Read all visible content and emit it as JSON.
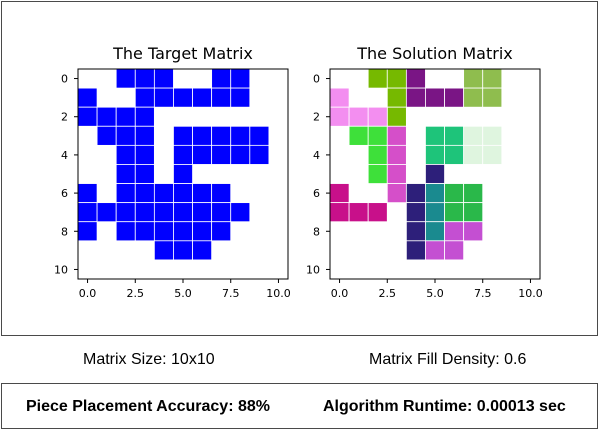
{
  "stats": {
    "matrix_size": "Matrix Size: 10x10",
    "fill_density": "Matrix Fill Density: 0.6"
  },
  "results": {
    "accuracy": "Piece Placement Accuracy: 88%",
    "runtime": "Algorithm Runtime: 0.00013 sec"
  },
  "chart_data": [
    {
      "type": "heatmap",
      "title": "The Target Matrix",
      "xlim": [
        -0.5,
        10.5
      ],
      "ylim": [
        10.5,
        -0.5
      ],
      "xticks": [
        0.0,
        2.5,
        5.0,
        7.5,
        10.0
      ],
      "xtick_labels": [
        "0.0",
        "2.5",
        "5.0",
        "7.5",
        "10.0"
      ],
      "yticks": [
        0,
        2,
        4,
        6,
        8,
        10
      ],
      "ytick_labels": [
        "0",
        "2",
        "4",
        "6",
        "8",
        "10"
      ],
      "grid": false,
      "color": "#0000ff",
      "cells": [
        [
          0,
          2
        ],
        [
          0,
          3
        ],
        [
          0,
          4
        ],
        [
          0,
          7
        ],
        [
          0,
          8
        ],
        [
          1,
          0
        ],
        [
          1,
          3
        ],
        [
          1,
          4
        ],
        [
          1,
          5
        ],
        [
          1,
          6
        ],
        [
          1,
          7
        ],
        [
          1,
          8
        ],
        [
          2,
          0
        ],
        [
          2,
          1
        ],
        [
          2,
          2
        ],
        [
          2,
          3
        ],
        [
          3,
          1
        ],
        [
          3,
          2
        ],
        [
          3,
          3
        ],
        [
          3,
          5
        ],
        [
          3,
          6
        ],
        [
          3,
          7
        ],
        [
          3,
          8
        ],
        [
          3,
          9
        ],
        [
          4,
          2
        ],
        [
          4,
          3
        ],
        [
          4,
          5
        ],
        [
          4,
          6
        ],
        [
          4,
          7
        ],
        [
          4,
          8
        ],
        [
          4,
          9
        ],
        [
          5,
          2
        ],
        [
          5,
          3
        ],
        [
          5,
          5
        ],
        [
          6,
          0
        ],
        [
          6,
          2
        ],
        [
          6,
          3
        ],
        [
          6,
          4
        ],
        [
          6,
          5
        ],
        [
          6,
          6
        ],
        [
          6,
          7
        ],
        [
          7,
          0
        ],
        [
          7,
          1
        ],
        [
          7,
          2
        ],
        [
          7,
          3
        ],
        [
          7,
          4
        ],
        [
          7,
          5
        ],
        [
          7,
          6
        ],
        [
          7,
          7
        ],
        [
          7,
          8
        ],
        [
          8,
          0
        ],
        [
          8,
          2
        ],
        [
          8,
          3
        ],
        [
          8,
          4
        ],
        [
          8,
          5
        ],
        [
          8,
          6
        ],
        [
          8,
          7
        ],
        [
          9,
          4
        ],
        [
          9,
          5
        ],
        [
          9,
          6
        ]
      ]
    },
    {
      "type": "heatmap",
      "title": "The Solution Matrix",
      "xlim": [
        -0.5,
        10.5
      ],
      "ylim": [
        10.5,
        -0.5
      ],
      "xticks": [
        0.0,
        2.5,
        5.0,
        7.5,
        10.0
      ],
      "xtick_labels": [
        "0.0",
        "2.5",
        "5.0",
        "7.5",
        "10.0"
      ],
      "yticks": [
        0,
        2,
        4,
        6,
        8,
        10
      ],
      "ytick_labels": [
        "0",
        "2",
        "4",
        "6",
        "8",
        "10"
      ],
      "grid": false,
      "pieces": [
        {
          "color": "#76b900",
          "cells": [
            [
              0,
              2
            ],
            [
              0,
              3
            ],
            [
              1,
              3
            ],
            [
              2,
              3
            ]
          ]
        },
        {
          "color": "#7a1585",
          "cells": [
            [
              0,
              4
            ],
            [
              1,
              4
            ],
            [
              1,
              5
            ],
            [
              1,
              6
            ]
          ]
        },
        {
          "color": "#8fbd4e",
          "cells": [
            [
              0,
              7
            ],
            [
              0,
              8
            ],
            [
              1,
              7
            ],
            [
              1,
              8
            ]
          ]
        },
        {
          "color": "#f38ef0",
          "cells": [
            [
              1,
              0
            ],
            [
              2,
              0
            ],
            [
              2,
              1
            ],
            [
              2,
              2
            ]
          ]
        },
        {
          "color": "#3ee03a",
          "cells": [
            [
              3,
              1
            ],
            [
              3,
              2
            ],
            [
              4,
              2
            ],
            [
              5,
              2
            ]
          ]
        },
        {
          "color": "#d54fc9",
          "cells": [
            [
              3,
              3
            ],
            [
              4,
              3
            ],
            [
              5,
              3
            ],
            [
              6,
              3
            ]
          ]
        },
        {
          "color": "#1ec47a",
          "cells": [
            [
              3,
              5
            ],
            [
              3,
              6
            ],
            [
              4,
              5
            ],
            [
              4,
              6
            ]
          ]
        },
        {
          "color": "#dff5df",
          "cells": [
            [
              3,
              7
            ],
            [
              3,
              8
            ],
            [
              4,
              7
            ],
            [
              4,
              8
            ]
          ]
        },
        {
          "color": "#2d1f7a",
          "cells": [
            [
              5,
              5
            ],
            [
              6,
              5
            ],
            [
              6,
              4
            ],
            [
              7,
              4
            ],
            [
              8,
              4
            ],
            [
              9,
              4
            ]
          ]
        },
        {
          "color": "#1a8a8f",
          "cells": [
            [
              7,
              5
            ],
            [
              8,
              5
            ],
            [
              6,
              5
            ]
          ]
        },
        {
          "color": "#c8108a",
          "cells": [
            [
              6,
              0
            ],
            [
              7,
              0
            ],
            [
              7,
              1
            ],
            [
              7,
              2
            ]
          ]
        },
        {
          "color": "#2ab84a",
          "cells": [
            [
              6,
              6
            ],
            [
              6,
              7
            ],
            [
              7,
              6
            ],
            [
              7,
              7
            ]
          ]
        },
        {
          "color": "#c44fd2",
          "cells": [
            [
              8,
              6
            ],
            [
              8,
              7
            ],
            [
              9,
              5
            ],
            [
              9,
              6
            ]
          ]
        }
      ]
    }
  ]
}
